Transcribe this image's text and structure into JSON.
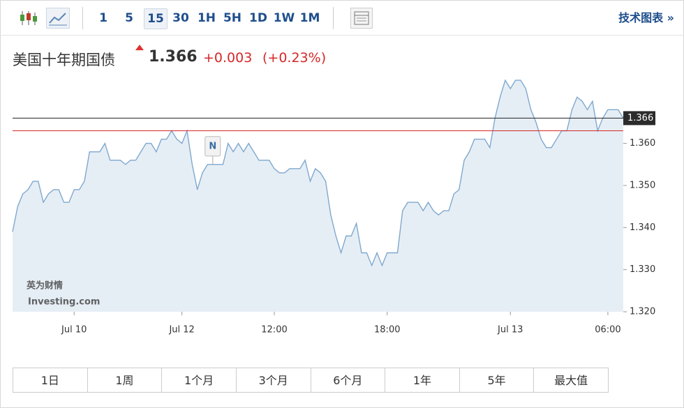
{
  "toolbar": {
    "intervals": [
      "1",
      "5",
      "15",
      "30",
      "1H",
      "5H",
      "1D",
      "1W",
      "1M"
    ],
    "active": "15",
    "link": "技术图表 »"
  },
  "header": {
    "name": "美国十年期国债",
    "change": "+0.003",
    "change_percent": "(+0.23%)"
  },
  "watermark": {
    "brand": "英为财情",
    "site": "Investing.com"
  },
  "chart_data": {
    "type": "line",
    "last_value": 1.366,
    "reference_value": 1.363,
    "reference_color": "#d62728",
    "last_color": "#222222",
    "marker": {
      "label": "N",
      "index": 39
    },
    "series": [
      {
        "name": "美国十年期国债",
        "color": "#7fa8cf",
        "values": [
          1.339,
          1.345,
          1.348,
          1.349,
          1.351,
          1.351,
          1.346,
          1.348,
          1.349,
          1.349,
          1.346,
          1.346,
          1.349,
          1.349,
          1.351,
          1.358,
          1.358,
          1.358,
          1.36,
          1.356,
          1.356,
          1.356,
          1.355,
          1.356,
          1.356,
          1.358,
          1.36,
          1.36,
          1.358,
          1.361,
          1.361,
          1.363,
          1.361,
          1.36,
          1.363,
          1.355,
          1.349,
          1.353,
          1.355,
          1.355,
          1.355,
          1.355,
          1.36,
          1.358,
          1.36,
          1.358,
          1.36,
          1.358,
          1.356,
          1.356,
          1.356,
          1.354,
          1.353,
          1.353,
          1.354,
          1.354,
          1.354,
          1.356,
          1.351,
          1.354,
          1.353,
          1.351,
          1.343,
          1.338,
          1.334,
          1.338,
          1.338,
          1.341,
          1.334,
          1.334,
          1.331,
          1.334,
          1.331,
          1.334,
          1.334,
          1.334,
          1.344,
          1.346,
          1.346,
          1.346,
          1.344,
          1.346,
          1.344,
          1.343,
          1.344,
          1.344,
          1.348,
          1.349,
          1.356,
          1.358,
          1.361,
          1.361,
          1.361,
          1.359,
          1.366,
          1.371,
          1.375,
          1.373,
          1.375,
          1.375,
          1.373,
          1.368,
          1.365,
          1.361,
          1.359,
          1.359,
          1.361,
          1.363,
          1.363,
          1.368,
          1.371,
          1.37,
          1.368,
          1.37,
          1.363,
          1.366,
          1.368,
          1.368,
          1.368,
          1.366
        ]
      }
    ],
    "xlim": [
      0,
      119
    ],
    "xticks": [
      {
        "value": 12,
        "label": "Jul 10"
      },
      {
        "value": 33,
        "label": "Jul 12"
      },
      {
        "value": 51,
        "label": "12:00"
      },
      {
        "value": 73,
        "label": "18:00"
      },
      {
        "value": 97,
        "label": "Jul 13"
      },
      {
        "value": 116,
        "label": "06:00"
      }
    ],
    "ylim": [
      1.32,
      1.377
    ],
    "yticks": [
      {
        "value": 1.32,
        "label": "1.320"
      },
      {
        "value": 1.33,
        "label": "1.330"
      },
      {
        "value": 1.34,
        "label": "1.340"
      },
      {
        "value": 1.35,
        "label": "1.350"
      },
      {
        "value": 1.36,
        "label": "1.360"
      }
    ]
  },
  "range_buttons": [
    "1日",
    "1周",
    "1个月",
    "3个月",
    "6个月",
    "1年",
    "5年",
    "最大值"
  ]
}
